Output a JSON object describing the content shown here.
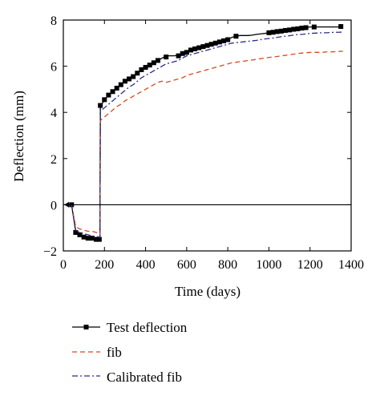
{
  "chart_data": {
    "type": "line",
    "title": "",
    "xlabel": "Time (days)",
    "ylabel": "Deflection (mm)",
    "xlim": [
      0,
      1400
    ],
    "ylim": [
      -2,
      8
    ],
    "xticks": [
      0,
      200,
      400,
      600,
      800,
      1000,
      1200,
      1400
    ],
    "yticks": [
      -2,
      0,
      2,
      4,
      6,
      8
    ],
    "xtick_labels": [
      "0",
      "200",
      "400",
      "600",
      "800",
      "1000",
      "1200",
      "1400"
    ],
    "ytick_labels": [
      "−2",
      "0",
      "2",
      "4",
      "6",
      "8"
    ],
    "grid": false,
    "zero_line": true,
    "legend_position": "below",
    "series": [
      {
        "name": "Test deflection",
        "color": "#000000",
        "style": "solid-with-square-markers",
        "x": [
          40,
          60,
          70,
          80,
          90,
          100,
          110,
          120,
          130,
          140,
          150,
          160,
          170,
          178,
          180,
          190,
          200,
          220,
          240,
          260,
          280,
          300,
          320,
          340,
          360,
          380,
          400,
          420,
          440,
          460,
          480,
          500,
          520,
          540,
          560,
          580,
          600,
          620,
          640,
          660,
          680,
          700,
          720,
          740,
          760,
          780,
          800,
          820,
          840,
          860,
          880,
          900,
          920,
          940,
          960,
          980,
          1000,
          1020,
          1040,
          1060,
          1080,
          1100,
          1120,
          1140,
          1160,
          1180,
          1200,
          1220,
          1240,
          1260,
          1280,
          1300,
          1320,
          1340,
          1360
        ],
        "y": [
          0.0,
          -1.15,
          -1.25,
          -1.3,
          -1.35,
          -1.4,
          -1.42,
          -1.45,
          -1.45,
          -1.48,
          -1.5,
          -1.5,
          -1.55,
          -1.55,
          4.3,
          4.4,
          4.55,
          4.75,
          4.9,
          5.05,
          5.2,
          5.35,
          5.45,
          5.55,
          5.7,
          5.85,
          5.95,
          6.05,
          6.15,
          6.25,
          6.35,
          6.45,
          6.45,
          6.45,
          6.48,
          6.55,
          6.6,
          6.7,
          6.75,
          6.8,
          6.85,
          6.9,
          6.95,
          7.0,
          7.05,
          7.1,
          7.15,
          7.25,
          7.3,
          7.33,
          7.33,
          7.33,
          7.35,
          7.38,
          7.4,
          7.42,
          7.45,
          7.47,
          7.5,
          7.52,
          7.55,
          7.57,
          7.6,
          7.62,
          7.65,
          7.67,
          7.7,
          7.7,
          7.7,
          7.7,
          7.7,
          7.7,
          7.7,
          7.7,
          7.72
        ],
        "marker_x": [
          40,
          60,
          80,
          100,
          120,
          140,
          160,
          175,
          180,
          200,
          220,
          240,
          260,
          280,
          300,
          320,
          340,
          360,
          380,
          400,
          420,
          440,
          460,
          500,
          560,
          580,
          600,
          620,
          640,
          660,
          680,
          700,
          720,
          740,
          760,
          780,
          800,
          840,
          1000,
          1020,
          1040,
          1060,
          1080,
          1100,
          1120,
          1140,
          1160,
          1180,
          1220,
          1350
        ],
        "marker_y": [
          0.0,
          -1.2,
          -1.3,
          -1.4,
          -1.45,
          -1.45,
          -1.5,
          -1.5,
          4.3,
          4.55,
          4.75,
          4.9,
          5.05,
          5.2,
          5.35,
          5.45,
          5.55,
          5.7,
          5.85,
          5.95,
          6.05,
          6.15,
          6.25,
          6.4,
          6.45,
          6.55,
          6.6,
          6.7,
          6.75,
          6.8,
          6.85,
          6.9,
          6.95,
          7.0,
          7.05,
          7.1,
          7.15,
          7.3,
          7.45,
          7.47,
          7.5,
          7.52,
          7.55,
          7.57,
          7.6,
          7.62,
          7.65,
          7.67,
          7.7,
          7.72
        ]
      },
      {
        "name": "fib",
        "color": "#d9481c",
        "style": "dashed",
        "x": [
          40,
          60,
          80,
          100,
          120,
          140,
          160,
          175,
          178,
          180,
          200,
          220,
          240,
          260,
          280,
          300,
          320,
          340,
          360,
          380,
          400,
          420,
          440,
          460,
          480,
          500,
          520,
          540,
          560,
          580,
          600,
          620,
          640,
          660,
          680,
          700,
          720,
          740,
          760,
          780,
          800,
          820,
          840,
          860,
          880,
          900,
          920,
          940,
          960,
          980,
          1000,
          1020,
          1040,
          1060,
          1080,
          1100,
          1120,
          1140,
          1160,
          1180,
          1200,
          1220,
          1240,
          1260,
          1280,
          1300,
          1320,
          1340,
          1360
        ],
        "y": [
          0.0,
          -0.95,
          -1.05,
          -1.1,
          -1.15,
          -1.15,
          -1.2,
          -1.25,
          -1.3,
          3.65,
          3.8,
          3.95,
          4.1,
          4.25,
          4.35,
          4.5,
          4.6,
          4.7,
          4.8,
          4.9,
          5.0,
          5.1,
          5.2,
          5.3,
          5.35,
          5.3,
          5.35,
          5.4,
          5.45,
          5.5,
          5.6,
          5.65,
          5.7,
          5.75,
          5.8,
          5.85,
          5.9,
          5.95,
          6.0,
          6.05,
          6.1,
          6.15,
          6.17,
          6.2,
          6.22,
          6.25,
          6.27,
          6.3,
          6.33,
          6.35,
          6.38,
          6.4,
          6.42,
          6.45,
          6.47,
          6.5,
          6.52,
          6.55,
          6.57,
          6.58,
          6.6,
          6.6,
          6.6,
          6.6,
          6.62,
          6.62,
          6.63,
          6.64,
          6.65
        ]
      },
      {
        "name": "Calibrated fib",
        "color": "#2b2b8f",
        "style": "dash-dot",
        "x": [
          40,
          60,
          80,
          100,
          120,
          140,
          160,
          175,
          178,
          180,
          200,
          220,
          240,
          260,
          280,
          300,
          320,
          340,
          360,
          380,
          400,
          420,
          440,
          460,
          480,
          500,
          520,
          540,
          560,
          580,
          600,
          620,
          640,
          660,
          680,
          700,
          720,
          740,
          760,
          780,
          800,
          820,
          840,
          860,
          880,
          900,
          920,
          940,
          960,
          980,
          1000,
          1020,
          1040,
          1060,
          1080,
          1100,
          1120,
          1140,
          1160,
          1180,
          1200,
          1220,
          1240,
          1260,
          1280,
          1300,
          1320,
          1340,
          1360
        ],
        "y": [
          0.0,
          -1.1,
          -1.2,
          -1.25,
          -1.3,
          -1.35,
          -1.38,
          -1.4,
          -1.42,
          4.05,
          4.2,
          4.35,
          4.5,
          4.65,
          4.8,
          4.95,
          5.1,
          5.2,
          5.35,
          5.5,
          5.6,
          5.7,
          5.8,
          5.9,
          6.0,
          6.1,
          6.15,
          6.2,
          6.25,
          6.35,
          6.45,
          6.5,
          6.55,
          6.6,
          6.65,
          6.7,
          6.75,
          6.8,
          6.85,
          6.9,
          6.95,
          7.0,
          7.02,
          7.04,
          7.06,
          7.08,
          7.1,
          7.12,
          7.15,
          7.18,
          7.2,
          7.22,
          7.25,
          7.28,
          7.3,
          7.32,
          7.35,
          7.37,
          7.38,
          7.4,
          7.42,
          7.43,
          7.44,
          7.45,
          7.45,
          7.46,
          7.47,
          7.47,
          7.48
        ]
      }
    ]
  }
}
